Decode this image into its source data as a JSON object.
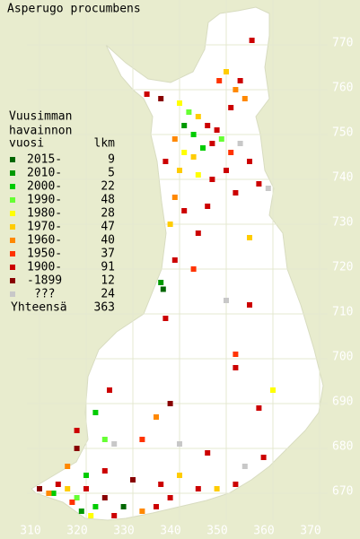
{
  "title": "Asperugo procumbens",
  "legend": {
    "header": [
      "Vuusimman",
      "havainnon",
      "vuosi"
    ],
    "count_header": "lkm",
    "items": [
      {
        "label": "2015-",
        "count": 9,
        "color": "#006600"
      },
      {
        "label": "2010-",
        "count": 5,
        "color": "#009900"
      },
      {
        "label": "2000-",
        "count": 22,
        "color": "#00cc00"
      },
      {
        "label": "1990-",
        "count": 48,
        "color": "#66ff33"
      },
      {
        "label": "1980-",
        "count": 28,
        "color": "#ffff00"
      },
      {
        "label": "1970-",
        "count": 47,
        "color": "#ffcc00"
      },
      {
        "label": "1960-",
        "count": 40,
        "color": "#ff8800"
      },
      {
        "label": "1950-",
        "count": 37,
        "color": "#ff3300"
      },
      {
        "label": "1900-",
        "count": 91,
        "color": "#cc0000"
      },
      {
        "label": "-1899",
        "count": 12,
        "color": "#880000"
      },
      {
        "label": "???",
        "count": 24,
        "color": "#c8c8c8"
      }
    ],
    "total_label": "Yhteensä",
    "total": 363
  },
  "xticks": [
    310,
    320,
    330,
    340,
    350,
    360,
    370
  ],
  "yticks": [
    670,
    680,
    690,
    700,
    710,
    720,
    730,
    740,
    750,
    760,
    770
  ],
  "observations": [
    [
      355.5,
      771,
      8
    ],
    [
      348.5,
      762,
      7
    ],
    [
      350,
      764,
      5
    ],
    [
      352,
      760,
      6
    ],
    [
      354,
      758,
      6
    ],
    [
      351,
      756,
      8
    ],
    [
      353,
      762,
      8
    ],
    [
      333,
      759,
      8
    ],
    [
      336,
      758,
      9
    ],
    [
      340,
      757,
      4
    ],
    [
      342,
      755,
      3
    ],
    [
      344,
      754,
      5
    ],
    [
      341,
      752,
      1
    ],
    [
      343,
      750,
      2
    ],
    [
      346,
      752,
      8
    ],
    [
      348,
      751,
      8
    ],
    [
      339,
      749,
      6
    ],
    [
      341,
      746,
      4
    ],
    [
      343,
      745,
      5
    ],
    [
      345,
      747,
      2
    ],
    [
      347,
      748,
      8
    ],
    [
      349,
      749,
      3
    ],
    [
      351,
      746,
      7
    ],
    [
      353,
      748,
      10
    ],
    [
      337,
      744,
      8
    ],
    [
      340,
      742,
      5
    ],
    [
      344,
      741,
      4
    ],
    [
      347,
      740,
      8
    ],
    [
      350,
      742,
      8
    ],
    [
      355,
      744,
      8
    ],
    [
      357,
      739,
      8
    ],
    [
      359,
      738,
      10
    ],
    [
      352,
      737,
      8
    ],
    [
      339,
      736,
      6
    ],
    [
      341,
      733,
      8
    ],
    [
      346,
      734,
      8
    ],
    [
      338,
      730,
      5
    ],
    [
      344,
      728,
      8
    ],
    [
      355,
      727,
      5
    ],
    [
      339,
      722,
      8
    ],
    [
      343,
      720,
      7
    ],
    [
      336,
      717,
      1
    ],
    [
      336.5,
      715.5,
      0
    ],
    [
      350,
      713,
      10
    ],
    [
      355,
      712,
      8
    ],
    [
      337,
      709,
      8
    ],
    [
      352,
      701,
      7
    ],
    [
      352,
      698,
      8
    ],
    [
      360,
      693,
      4
    ],
    [
      357,
      689,
      8
    ],
    [
      338,
      690,
      9
    ],
    [
      335,
      687,
      6
    ],
    [
      325,
      693,
      8
    ],
    [
      322,
      688,
      2
    ],
    [
      318,
      684,
      8
    ],
    [
      324,
      682,
      3
    ],
    [
      318,
      680,
      9
    ],
    [
      326,
      681,
      10
    ],
    [
      332,
      682,
      7
    ],
    [
      340,
      681,
      10
    ],
    [
      346,
      679,
      8
    ],
    [
      354,
      676,
      10
    ],
    [
      358,
      678,
      8
    ],
    [
      316,
      676,
      6
    ],
    [
      320,
      674,
      2
    ],
    [
      324,
      675,
      8
    ],
    [
      330,
      673,
      9
    ],
    [
      336,
      672,
      8
    ],
    [
      340,
      674,
      5
    ],
    [
      344,
      671,
      8
    ],
    [
      348,
      671,
      5
    ],
    [
      352,
      672,
      8
    ],
    [
      310,
      671,
      9
    ],
    [
      313,
      670,
      2
    ],
    [
      316,
      671,
      5
    ],
    [
      318,
      669,
      3
    ],
    [
      320,
      671,
      8
    ],
    [
      322,
      667,
      2
    ],
    [
      324,
      669,
      9
    ],
    [
      326,
      665,
      8
    ],
    [
      328,
      667,
      0
    ],
    [
      332,
      666,
      6
    ],
    [
      335,
      667,
      8
    ],
    [
      338,
      669,
      8
    ],
    [
      321,
      665,
      4
    ],
    [
      319,
      666,
      1
    ],
    [
      317,
      668,
      7
    ],
    [
      314,
      672,
      8
    ],
    [
      312,
      670,
      6
    ]
  ]
}
